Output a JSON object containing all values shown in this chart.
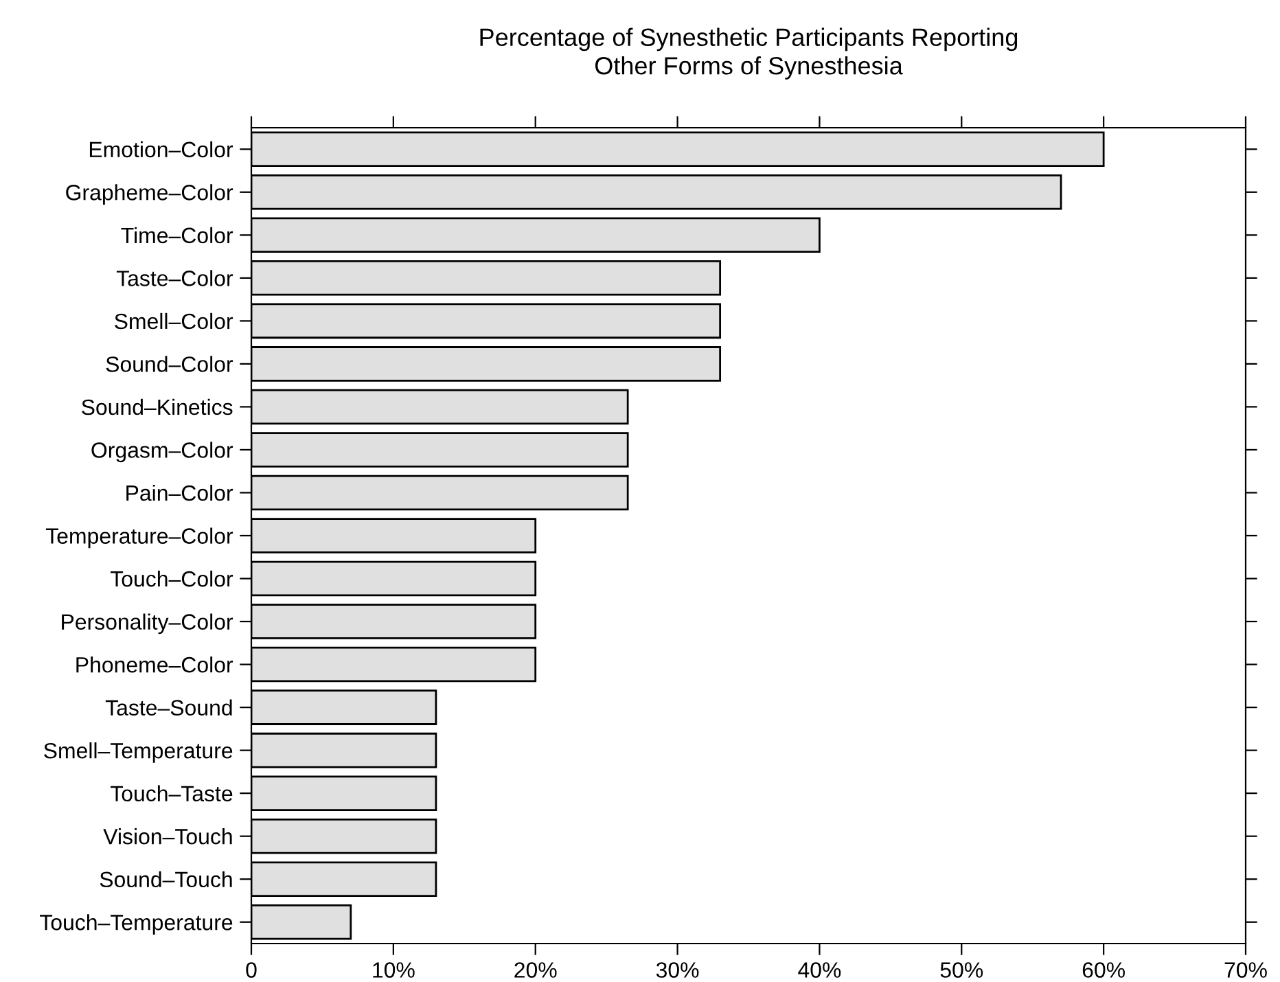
{
  "chart_data": {
    "type": "bar",
    "orientation": "horizontal",
    "title": "Percentage of Synesthetic Participants Reporting\nOther Forms of Synesthesia",
    "categories": [
      "Emotion–Color",
      "Grapheme–Color",
      "Time–Color",
      "Taste–Color",
      "Smell–Color",
      "Sound–Color",
      "Sound–Kinetics",
      "Orgasm–Color",
      "Pain–Color",
      "Temperature–Color",
      "Touch–Color",
      "Personality–Color",
      "Phoneme–Color",
      "Taste–Sound",
      "Smell–Temperature",
      "Touch–Taste",
      "Vision–Touch",
      "Sound–Touch",
      "Touch–Temperature"
    ],
    "values": [
      60,
      57,
      40,
      33,
      33,
      33,
      26.5,
      26.5,
      26.5,
      20,
      20,
      20,
      20,
      13,
      13,
      13,
      13,
      13,
      7
    ],
    "color": "#e0e0e0",
    "xlim": [
      0,
      70
    ],
    "xticks": [
      0,
      {
        "value": 10,
        "label": "10%"
      },
      {
        "value": 20,
        "label": "20%"
      },
      {
        "value": 30,
        "label": "30%"
      },
      {
        "value": 40,
        "label": "40%"
      },
      {
        "value": 50,
        "label": "50%"
      },
      {
        "value": 60,
        "label": "60%"
      },
      {
        "value": 70,
        "label": "70%"
      }
    ],
    "grid": false
  }
}
